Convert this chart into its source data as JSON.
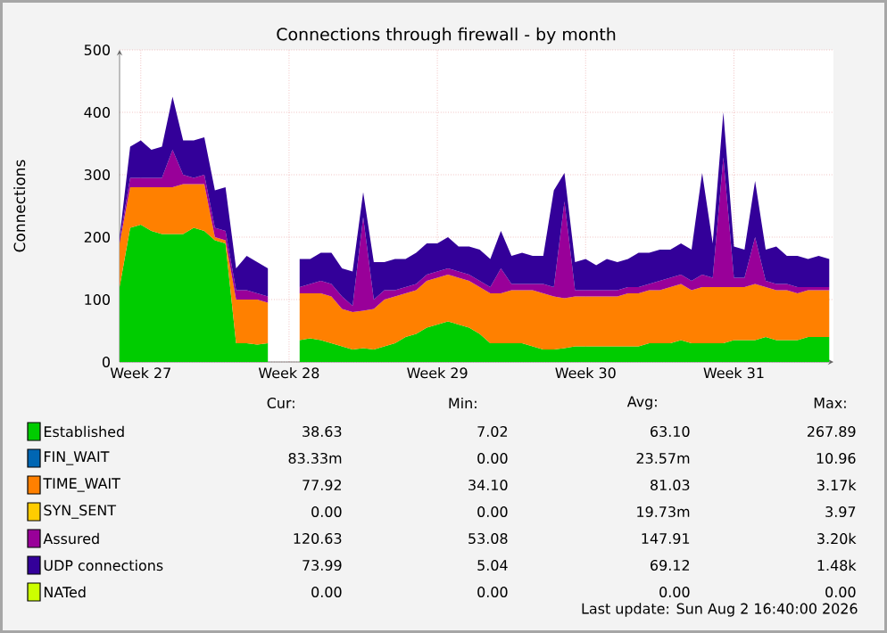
{
  "chart_data": {
    "type": "area",
    "stacked": true,
    "title": "Connections through firewall - by month",
    "ylabel": "Connections",
    "categories": [
      null,
      null,
      "Week 27",
      null,
      null,
      null,
      null,
      null,
      null,
      null,
      null,
      null,
      null,
      null,
      null,
      null,
      "Week 28",
      null,
      null,
      null,
      null,
      null,
      null,
      null,
      null,
      null,
      null,
      null,
      null,
      null,
      "Week 29",
      null,
      null,
      null,
      null,
      null,
      null,
      null,
      null,
      null,
      null,
      null,
      null,
      null,
      "Week 30",
      null,
      null,
      null,
      null,
      null,
      null,
      null,
      null,
      null,
      null,
      null,
      null,
      null,
      "Week 31",
      null,
      null,
      null,
      null,
      null,
      null,
      null,
      null,
      null
    ],
    "ylim": [
      0,
      500
    ],
    "yticks": [
      0,
      100,
      200,
      300,
      400,
      500
    ],
    "grid": true,
    "legend": "bottom",
    "series": [
      {
        "name": "Established",
        "color": "#00cc00",
        "values": [
          120,
          215,
          220,
          210,
          205,
          205,
          205,
          215,
          210,
          195,
          190,
          30,
          30,
          28,
          30,
          null,
          null,
          35,
          38,
          35,
          30,
          25,
          20,
          22,
          20,
          25,
          30,
          40,
          45,
          55,
          60,
          65,
          60,
          55,
          45,
          30,
          30,
          30,
          30,
          25,
          20,
          20,
          22,
          25,
          25,
          25,
          25,
          25,
          25,
          25,
          30,
          30,
          30,
          35,
          30,
          30,
          30,
          30,
          35,
          35,
          35,
          40,
          35,
          35,
          35,
          40,
          40,
          40
        ]
      },
      {
        "name": "FIN_WAIT",
        "color": "#0066b3",
        "values": [
          null,
          null,
          null,
          null,
          null,
          null,
          null,
          null,
          null,
          null,
          null,
          null,
          null,
          null,
          null,
          null,
          null,
          null,
          null,
          null,
          null,
          null,
          null,
          null,
          null,
          null,
          null,
          null,
          null,
          null,
          null,
          null,
          null,
          null,
          null,
          null,
          null,
          null,
          null,
          null,
          null,
          null,
          null,
          null,
          null,
          null,
          null,
          null,
          null,
          null,
          null,
          null,
          null,
          null,
          null,
          null,
          null,
          null,
          null,
          null,
          null,
          null,
          null,
          null,
          null,
          null,
          null,
          null
        ]
      },
      {
        "name": "TIME_WAIT",
        "color": "#ff8000",
        "values": [
          70,
          65,
          60,
          70,
          75,
          75,
          80,
          70,
          75,
          5,
          5,
          70,
          70,
          72,
          65,
          null,
          null,
          75,
          72,
          75,
          75,
          60,
          60,
          60,
          65,
          75,
          75,
          70,
          70,
          75,
          75,
          75,
          75,
          75,
          75,
          80,
          80,
          85,
          85,
          90,
          90,
          85,
          80,
          80,
          80,
          80,
          80,
          80,
          85,
          85,
          85,
          85,
          90,
          90,
          85,
          90,
          90,
          90,
          85,
          85,
          90,
          80,
          80,
          80,
          75,
          75,
          75,
          75
        ]
      },
      {
        "name": "SYN_SENT",
        "color": "#ffcc00",
        "values": [
          null,
          null,
          null,
          null,
          null,
          null,
          null,
          null,
          null,
          null,
          null,
          null,
          null,
          null,
          null,
          null,
          null,
          null,
          null,
          null,
          null,
          null,
          null,
          null,
          null,
          null,
          null,
          null,
          null,
          null,
          null,
          null,
          null,
          null,
          null,
          null,
          null,
          null,
          null,
          null,
          null,
          null,
          null,
          null,
          null,
          null,
          null,
          null,
          null,
          null,
          null,
          null,
          null,
          null,
          null,
          null,
          null,
          null,
          null,
          null,
          null,
          null,
          null,
          null,
          null,
          null,
          null,
          null
        ]
      },
      {
        "name": "Assured",
        "color": "#990099",
        "values": [
          5,
          15,
          15,
          15,
          15,
          60,
          15,
          10,
          15,
          15,
          15,
          15,
          15,
          10,
          10,
          null,
          null,
          10,
          15,
          20,
          20,
          20,
          10,
          150,
          15,
          15,
          10,
          10,
          10,
          10,
          10,
          10,
          10,
          10,
          10,
          10,
          40,
          10,
          10,
          10,
          15,
          15,
          155,
          10,
          10,
          10,
          10,
          10,
          10,
          10,
          10,
          15,
          15,
          15,
          15,
          20,
          15,
          208,
          15,
          15,
          75,
          10,
          10,
          10,
          10,
          5,
          5,
          5
        ]
      },
      {
        "name": "UDP connections",
        "color": "#330099",
        "values": [
          5,
          50,
          60,
          45,
          50,
          85,
          55,
          60,
          60,
          60,
          70,
          35,
          55,
          50,
          45,
          null,
          null,
          45,
          40,
          45,
          50,
          45,
          55,
          40,
          60,
          45,
          50,
          45,
          50,
          50,
          45,
          50,
          40,
          45,
          50,
          45,
          60,
          45,
          50,
          45,
          45,
          155,
          46,
          45,
          50,
          40,
          50,
          45,
          45,
          55,
          50,
          50,
          45,
          50,
          50,
          163,
          55,
          72,
          50,
          45,
          90,
          50,
          60,
          45,
          50,
          45,
          50,
          45
        ]
      },
      {
        "name": "NATed",
        "color": "#ccff00",
        "values": [
          null,
          null,
          null,
          null,
          null,
          null,
          null,
          null,
          null,
          null,
          null,
          null,
          null,
          null,
          null,
          null,
          null,
          null,
          null,
          null,
          null,
          null,
          null,
          null,
          null,
          null,
          null,
          null,
          null,
          null,
          null,
          null,
          null,
          null,
          null,
          null,
          null,
          null,
          null,
          null,
          null,
          null,
          null,
          null,
          null,
          null,
          null,
          null,
          null,
          null,
          null,
          null,
          null,
          null,
          null,
          null,
          null,
          null,
          null,
          null,
          null,
          null,
          null,
          null,
          null,
          null,
          null,
          null
        ]
      }
    ],
    "annotations": [
      "Cur:",
      "Min:",
      "Avg:",
      "Max:",
      "38.63",
      "7.02",
      "63.10",
      "267.89",
      "83.33m",
      "0.00",
      "23.57m",
      "10.96",
      "77.92",
      "34.10",
      "81.03",
      "3.17k",
      "0.00",
      "0.00",
      "19.73m",
      "3.97",
      "120.63",
      "53.08",
      "147.91",
      "3.20k",
      "73.99",
      "5.04",
      "69.12",
      "1.48k",
      "0.00",
      "0.00",
      "0.00",
      "0.00",
      "Last update: Sun Aug  2 16:40:00 2026"
    ]
  }
}
